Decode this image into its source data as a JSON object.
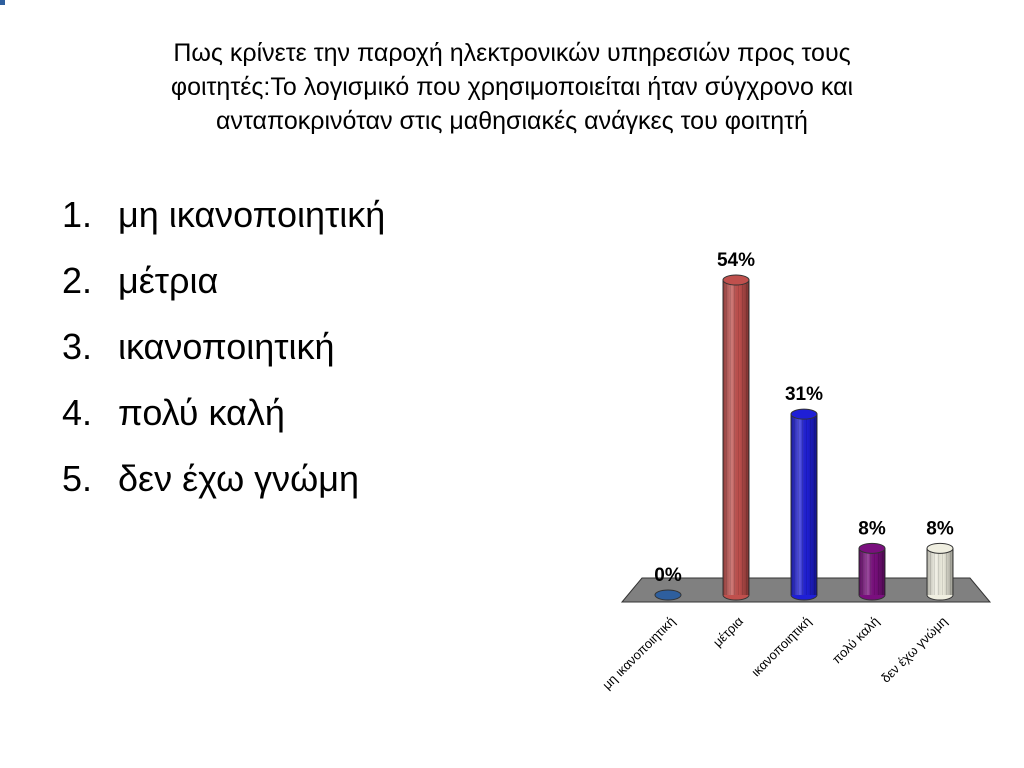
{
  "slide": {
    "title_lines": [
      "Πως κρίνετε την παροχή ηλεκτρονικών υπηρεσιών προς τους",
      "φοιτητές:Το λογισμικό που χρησιμοποιείται ήταν σύγχρονο και",
      "ανταποκρινόταν στις μαθησιακές ανάγκες του φοιτητή"
    ],
    "options": [
      {
        "num": "1.",
        "label": "μη ικανοποιητική"
      },
      {
        "num": "2.",
        "label": "μέτρια"
      },
      {
        "num": "3.",
        "label": "ικανοποιητική"
      },
      {
        "num": "4.",
        "label": "πολύ καλή"
      },
      {
        "num": "5.",
        "label": "δεν έχω γνώμη"
      }
    ]
  },
  "chart_data": {
    "type": "bar",
    "style": "3d-cylinder",
    "categories": [
      "μη ικανοποιητική",
      "μέτρια",
      "ικανοποιητική",
      "πολύ καλή",
      "δεν έχω γνώμη"
    ],
    "values": [
      0,
      54,
      31,
      8,
      8
    ],
    "data_labels": [
      "0%",
      "54%",
      "31%",
      "8%",
      "8%"
    ],
    "colors": [
      "#2e5f9e",
      "#c0504d",
      "#1f1fd6",
      "#7a0f7e",
      "#efeee0"
    ],
    "floor_color": "#808080",
    "ylim": [
      0,
      60
    ],
    "grid": false,
    "legend": "none"
  }
}
